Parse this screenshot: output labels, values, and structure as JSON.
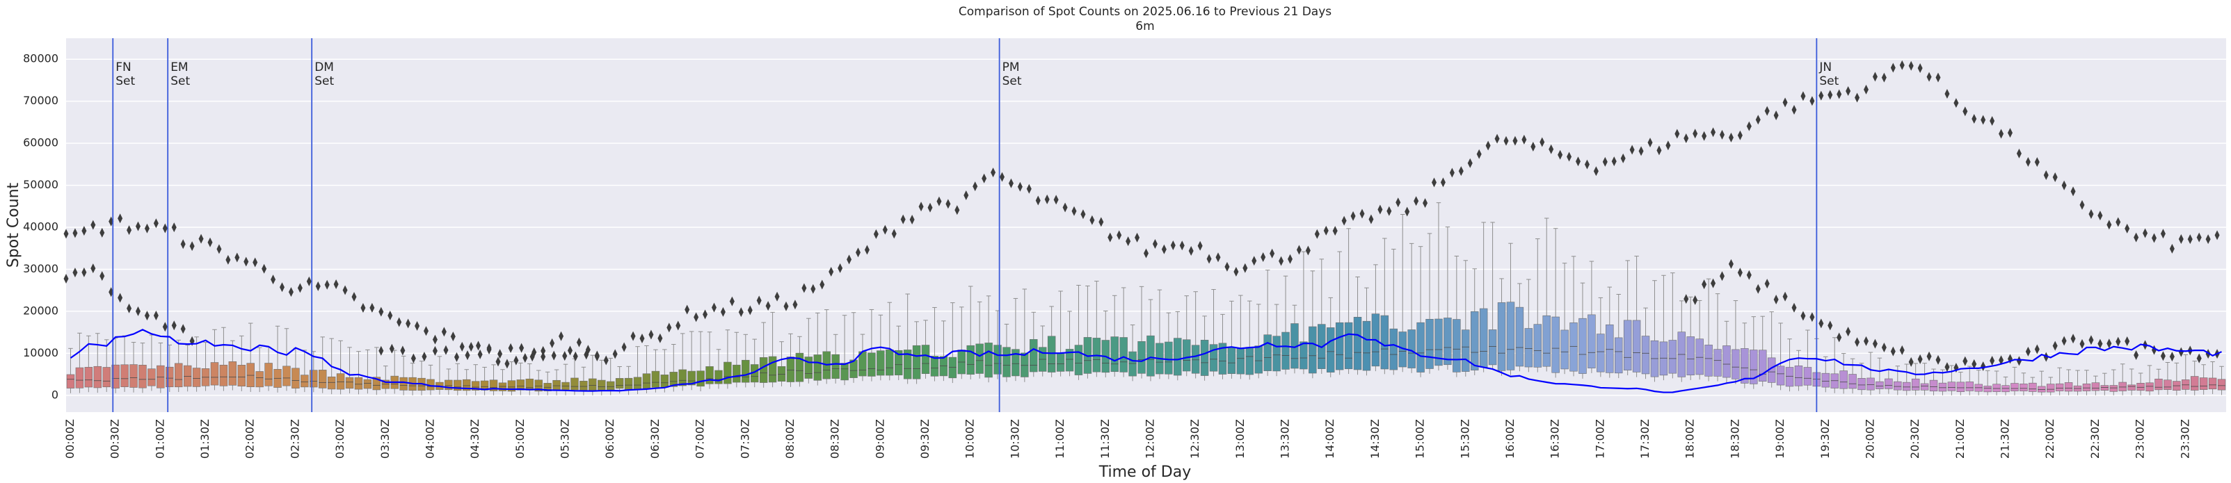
{
  "chart_data": {
    "type": "box",
    "title": "Comparison of Spot Counts on 2025.06.16 to Previous 21 Days",
    "subtitle": "6m",
    "xlabel": "Time of Day",
    "ylabel": "Spot Count",
    "ylim": [
      -4000,
      85000
    ],
    "yticks": [
      0,
      10000,
      20000,
      30000,
      40000,
      50000,
      60000,
      70000,
      80000
    ],
    "xtick_labels": [
      "00:00Z",
      "00:30Z",
      "01:00Z",
      "01:30Z",
      "02:00Z",
      "02:30Z",
      "03:00Z",
      "03:30Z",
      "04:00Z",
      "04:30Z",
      "05:00Z",
      "05:30Z",
      "06:00Z",
      "06:30Z",
      "07:00Z",
      "07:30Z",
      "08:00Z",
      "08:30Z",
      "09:00Z",
      "09:30Z",
      "10:00Z",
      "10:30Z",
      "11:00Z",
      "11:30Z",
      "12:00Z",
      "12:30Z",
      "13:00Z",
      "13:30Z",
      "14:00Z",
      "14:30Z",
      "15:00Z",
      "15:30Z",
      "16:00Z",
      "16:30Z",
      "17:00Z",
      "17:30Z",
      "18:00Z",
      "18:30Z",
      "19:00Z",
      "19:30Z",
      "20:00Z",
      "20:30Z",
      "21:00Z",
      "21:30Z",
      "22:00Z",
      "22:30Z",
      "23:00Z",
      "23:30Z"
    ],
    "bins_per_hour": 10,
    "annotations": [
      {
        "label1": "FN",
        "label2": "Set",
        "hour": 0.52
      },
      {
        "label1": "EM",
        "label2": "Set",
        "hour": 1.13
      },
      {
        "label1": "DM",
        "label2": "Set",
        "hour": 2.73
      },
      {
        "label1": "PM",
        "label2": "Set",
        "hour": 10.37
      },
      {
        "label1": "JN",
        "label2": "Set",
        "hour": 19.45
      }
    ],
    "median_profile": [
      [
        0,
        3500
      ],
      [
        1,
        4000
      ],
      [
        2,
        4500
      ],
      [
        3,
        3000
      ],
      [
        4,
        2200
      ],
      [
        5,
        2000
      ],
      [
        6,
        2200
      ],
      [
        7,
        3500
      ],
      [
        8,
        5500
      ],
      [
        9,
        6500
      ],
      [
        10,
        7500
      ],
      [
        11,
        8000
      ],
      [
        12,
        8000
      ],
      [
        13,
        8500
      ],
      [
        14,
        9500
      ],
      [
        15,
        10500
      ],
      [
        16,
        11000
      ],
      [
        17,
        10500
      ],
      [
        18,
        9000
      ],
      [
        19,
        5000
      ],
      [
        20,
        2500
      ],
      [
        21,
        1800
      ],
      [
        22,
        1500
      ],
      [
        23,
        2000
      ],
      [
        24,
        2500
      ]
    ],
    "q3_profile": [
      [
        0,
        6000
      ],
      [
        1,
        6500
      ],
      [
        2,
        7000
      ],
      [
        3,
        5000
      ],
      [
        4,
        3500
      ],
      [
        5,
        3300
      ],
      [
        6,
        3600
      ],
      [
        7,
        6000
      ],
      [
        8,
        8500
      ],
      [
        9,
        9500
      ],
      [
        10,
        11000
      ],
      [
        11,
        12000
      ],
      [
        12,
        12500
      ],
      [
        13,
        13000
      ],
      [
        14,
        15500
      ],
      [
        15,
        18500
      ],
      [
        16,
        19000
      ],
      [
        17,
        17000
      ],
      [
        18,
        14000
      ],
      [
        19,
        8500
      ],
      [
        20,
        4000
      ],
      [
        21,
        2800
      ],
      [
        22,
        2500
      ],
      [
        23,
        3000
      ],
      [
        24,
        4500
      ]
    ],
    "q1_profile": [
      [
        0,
        1800
      ],
      [
        1,
        2000
      ],
      [
        2,
        2300
      ],
      [
        3,
        1700
      ],
      [
        4,
        1200
      ],
      [
        5,
        1100
      ],
      [
        6,
        1300
      ],
      [
        7,
        2200
      ],
      [
        8,
        3500
      ],
      [
        9,
        4200
      ],
      [
        10,
        4800
      ],
      [
        11,
        5300
      ],
      [
        12,
        5000
      ],
      [
        13,
        5200
      ],
      [
        14,
        5800
      ],
      [
        15,
        6300
      ],
      [
        16,
        6500
      ],
      [
        17,
        5600
      ],
      [
        18,
        4800
      ],
      [
        19,
        2600
      ],
      [
        20,
        1500
      ],
      [
        21,
        1000
      ],
      [
        22,
        900
      ],
      [
        23,
        1100
      ],
      [
        24,
        1400
      ]
    ],
    "whisker_high_profile": [
      [
        0,
        13000
      ],
      [
        1,
        14000
      ],
      [
        2,
        15000
      ],
      [
        3,
        11000
      ],
      [
        4,
        7500
      ],
      [
        5,
        7000
      ],
      [
        6,
        8000
      ],
      [
        7,
        12500
      ],
      [
        8,
        17000
      ],
      [
        9,
        19000
      ],
      [
        10,
        21000
      ],
      [
        11,
        22000
      ],
      [
        12,
        22000
      ],
      [
        13,
        24000
      ],
      [
        14,
        30000
      ],
      [
        15,
        38000
      ],
      [
        16,
        36000
      ],
      [
        17,
        31000
      ],
      [
        18,
        25000
      ],
      [
        19,
        16000
      ],
      [
        20,
        8500
      ],
      [
        21,
        6000
      ],
      [
        22,
        5500
      ],
      [
        23,
        6500
      ],
      [
        24,
        9000
      ]
    ],
    "outlier_upper_profile": [
      [
        0,
        37000
      ],
      [
        0.5,
        41000
      ],
      [
        1,
        40000
      ],
      [
        1.5,
        36000
      ],
      [
        2,
        32000
      ],
      [
        2.5,
        26000
      ],
      [
        3,
        25000
      ],
      [
        3.5,
        19000
      ],
      [
        4,
        15000
      ],
      [
        4.5,
        12000
      ],
      [
        5,
        7000
      ],
      [
        5.5,
        13000
      ],
      [
        6,
        10000
      ],
      [
        6.5,
        14000
      ],
      [
        7,
        20000
      ],
      [
        7.5,
        21000
      ],
      [
        8,
        22000
      ],
      [
        8.5,
        28000
      ],
      [
        9,
        37000
      ],
      [
        9.5,
        45000
      ],
      [
        10,
        46000
      ],
      [
        10.3,
        53000
      ],
      [
        10.6,
        49000
      ],
      [
        11,
        45000
      ],
      [
        11.5,
        40000
      ],
      [
        12,
        35000
      ],
      [
        12.5,
        36000
      ],
      [
        13,
        31000
      ],
      [
        13.5,
        33000
      ],
      [
        14,
        38000
      ],
      [
        14.5,
        43000
      ],
      [
        15,
        45000
      ],
      [
        15.5,
        55000
      ],
      [
        16,
        61000
      ],
      [
        16.5,
        58000
      ],
      [
        17,
        55000
      ],
      [
        17.5,
        58000
      ],
      [
        18,
        62000
      ],
      [
        18.5,
        62000
      ],
      [
        19,
        68000
      ],
      [
        19.5,
        71000
      ],
      [
        20,
        73000
      ],
      [
        20.5,
        80000
      ],
      [
        21,
        70000
      ],
      [
        21.5,
        63000
      ],
      [
        22,
        52000
      ],
      [
        22.5,
        44000
      ],
      [
        23,
        38000
      ],
      [
        23.5,
        36000
      ],
      [
        24,
        39000
      ]
    ],
    "outlier_lower_profile": [
      [
        0,
        27000
      ],
      [
        0.3,
        30000
      ],
      [
        0.6,
        23000
      ],
      [
        0.8,
        19000
      ],
      [
        1,
        18000
      ],
      [
        1.2,
        16000
      ],
      [
        1.5,
        13000
      ],
      [
        3.5,
        10000
      ],
      [
        5,
        11000
      ],
      [
        6,
        9000
      ],
      [
        18,
        22000
      ],
      [
        18.5,
        30000
      ],
      [
        19,
        24000
      ],
      [
        19.5,
        17000
      ],
      [
        20,
        12000
      ],
      [
        20.5,
        9000
      ],
      [
        21,
        7000
      ],
      [
        21.5,
        8000
      ],
      [
        22,
        10000
      ],
      [
        22.5,
        14000
      ],
      [
        23,
        11000
      ],
      [
        24,
        10000
      ]
    ],
    "today_series": [
      [
        0,
        8500
      ],
      [
        0.3,
        12500
      ],
      [
        0.6,
        13000
      ],
      [
        0.8,
        14500
      ],
      [
        1,
        15000
      ],
      [
        1.2,
        14000
      ],
      [
        1.4,
        11000
      ],
      [
        1.6,
        12500
      ],
      [
        1.8,
        12000
      ],
      [
        2,
        11000
      ],
      [
        2.2,
        11500
      ],
      [
        2.4,
        10000
      ],
      [
        2.6,
        11500
      ],
      [
        2.8,
        9000
      ],
      [
        3,
        6000
      ],
      [
        3.5,
        3500
      ],
      [
        4,
        2500
      ],
      [
        4.5,
        1500
      ],
      [
        5,
        1500
      ],
      [
        5.5,
        1200
      ],
      [
        6,
        1000
      ],
      [
        6.5,
        1500
      ],
      [
        7,
        3000
      ],
      [
        7.5,
        4500
      ],
      [
        8,
        8500
      ],
      [
        8.3,
        8000
      ],
      [
        8.6,
        7500
      ],
      [
        9,
        11000
      ],
      [
        9.5,
        9000
      ],
      [
        10,
        10000
      ],
      [
        10.5,
        9500
      ],
      [
        11,
        11000
      ],
      [
        11.5,
        9000
      ],
      [
        12,
        8500
      ],
      [
        12.5,
        9500
      ],
      [
        13,
        11500
      ],
      [
        13.5,
        12500
      ],
      [
        14,
        12000
      ],
      [
        14.3,
        16000
      ],
      [
        14.6,
        12000
      ],
      [
        15,
        10000
      ],
      [
        15.5,
        8500
      ],
      [
        16,
        5000
      ],
      [
        16.5,
        3000
      ],
      [
        17,
        2000
      ],
      [
        17.5,
        1500
      ],
      [
        17.8,
        500
      ],
      [
        18.1,
        1500
      ],
      [
        18.4,
        2500
      ],
      [
        18.8,
        4500
      ],
      [
        19,
        7500
      ],
      [
        19.3,
        9500
      ],
      [
        19.6,
        8500
      ],
      [
        20,
        6500
      ],
      [
        20.5,
        5000
      ],
      [
        21,
        6000
      ],
      [
        21.5,
        7500
      ],
      [
        22,
        9500
      ],
      [
        22.5,
        11000
      ],
      [
        23,
        11500
      ],
      [
        23.5,
        10500
      ],
      [
        24,
        10000
      ]
    ],
    "colors": {
      "today_line": "#0000ff",
      "annotation_line": "#3b5bdb",
      "plot_bg": "#eaeaf2",
      "grid": "#ffffff",
      "outlier": "#3d3d3d",
      "whisker": "#8e8e8e",
      "box_gradient": [
        "#d27a80",
        "#c98a55",
        "#a88a3a",
        "#6b8f3b",
        "#4f9a60",
        "#4a9a8a",
        "#4a8fb0",
        "#8aa4d8",
        "#b090d8",
        "#d28ac8",
        "#d27a8e"
      ]
    }
  }
}
